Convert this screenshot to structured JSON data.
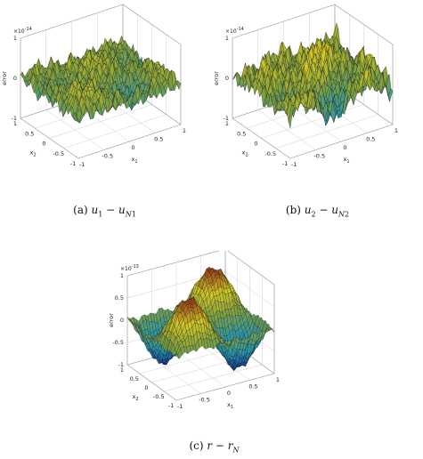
{
  "figures": [
    {
      "id": "a",
      "caption_label": "(a)",
      "caption_math": "u₁ − u_N1",
      "zlabel": "error",
      "scale_base": "×10",
      "scale_exp": "-14",
      "zticks": [
        "1",
        "0",
        "-1"
      ],
      "x1_label": "x",
      "x1_sub": "1",
      "x2_label": "x",
      "x2_sub": "2",
      "x1_ticks": [
        "-1",
        "-0.5",
        "0",
        "0.5",
        "1"
      ],
      "x2_ticks": [
        "1",
        "0.5",
        "0",
        "-0.5",
        "-1"
      ]
    },
    {
      "id": "b",
      "caption_label": "(b)",
      "caption_math": "u₂ − u_N2",
      "zlabel": "error",
      "scale_base": "×10",
      "scale_exp": "-14",
      "zticks": [
        "1",
        "0",
        "-1"
      ],
      "x1_label": "x",
      "x1_sub": "1",
      "x2_label": "x",
      "x2_sub": "2",
      "x1_ticks": [
        "-1",
        "-0.5",
        "0",
        "0.5",
        "1"
      ],
      "x2_ticks": [
        "1",
        "0.5",
        "0",
        "-0.5",
        "-1"
      ]
    },
    {
      "id": "c",
      "caption_label": "(c)",
      "caption_math": "r − r_N",
      "zlabel": "error",
      "scale_base": "×10",
      "scale_exp": "-13",
      "zticks": [
        "1",
        "0.5",
        "0",
        "-0.5",
        "-1"
      ],
      "x1_label": "x",
      "x1_sub": "1",
      "x2_label": "x",
      "x2_sub": "2",
      "x1_ticks": [
        "-1",
        "-0.5",
        "0",
        "0.5",
        "1"
      ],
      "x2_ticks": [
        "1",
        "0.5",
        "0",
        "-0.5",
        "-1"
      ]
    }
  ],
  "colors": {
    "axis": "#444444",
    "grid": "#d0d0d0",
    "surface_low": "#1a2a8c",
    "surface_mid": "#2f9fa0",
    "surface_high": "#c8c020",
    "surface_peak": "#8b1a12"
  }
}
